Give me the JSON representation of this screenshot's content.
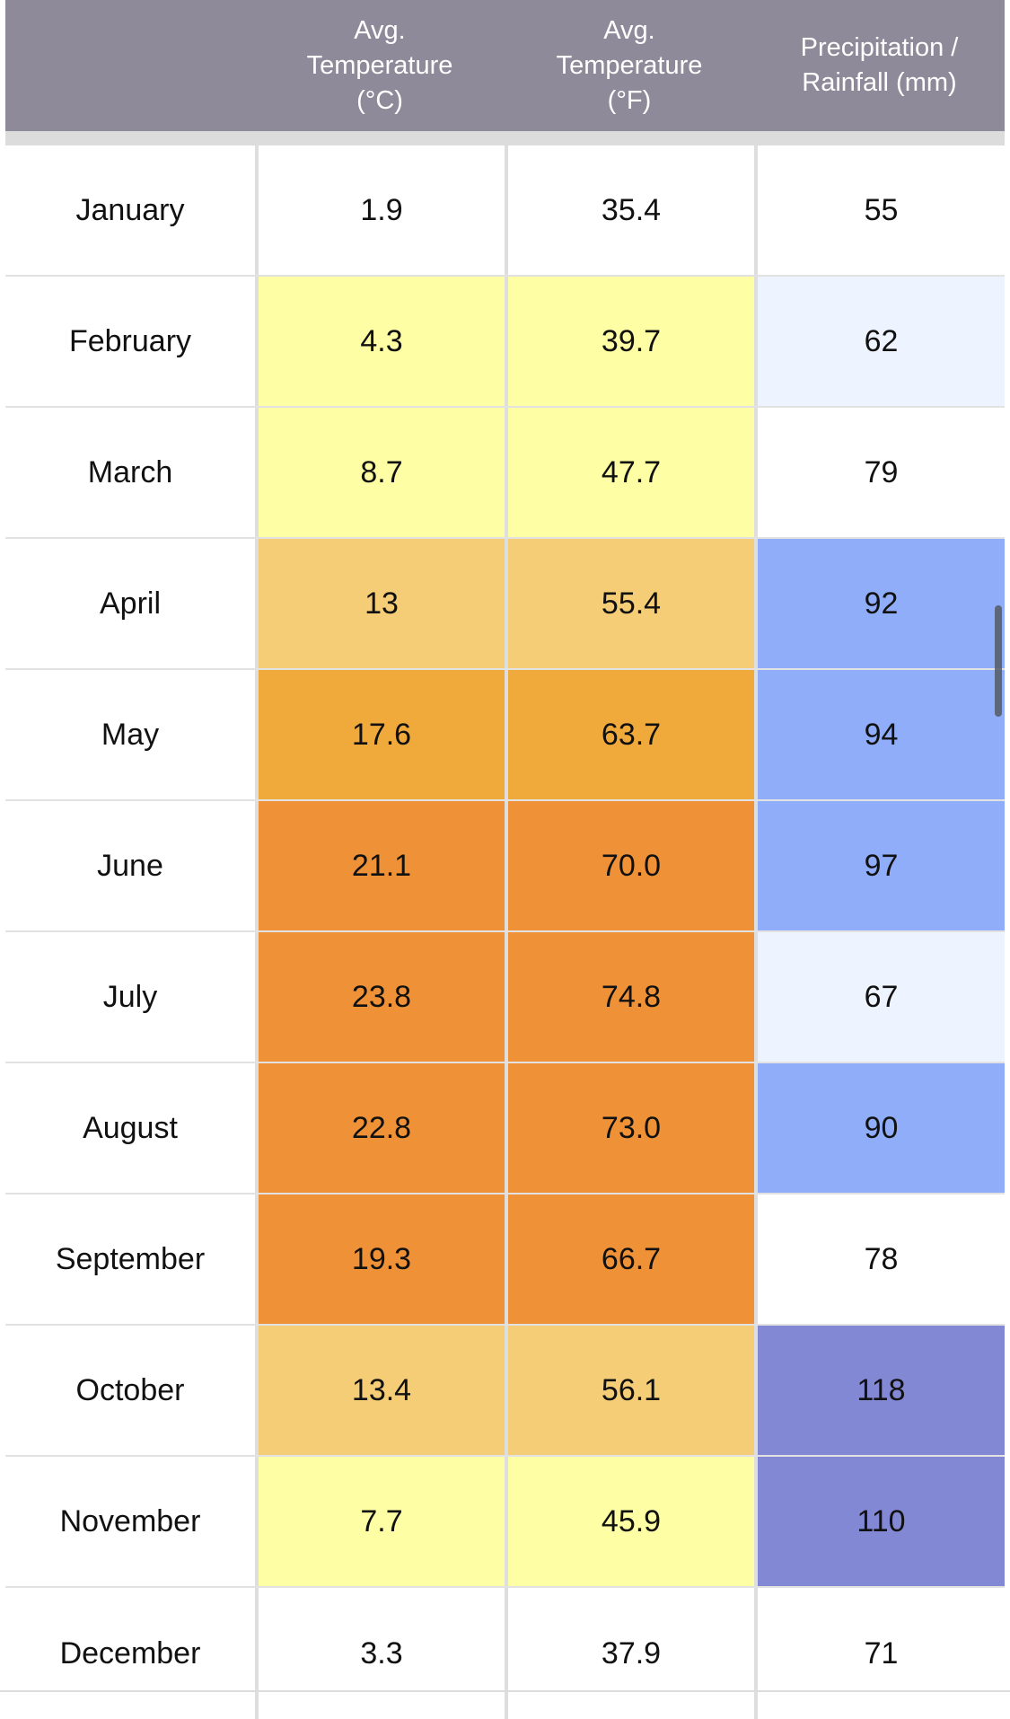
{
  "header": {
    "cols": [
      "",
      "Avg.\nTemperature\n(°C)",
      "Avg.\nTemperature\n(°F)",
      "Precipitation /\nRainfall (mm)"
    ]
  },
  "colors": {
    "white": "#ffffff",
    "temp_pale_yellow": "#fefea5",
    "temp_light_orange": "#f5cd77",
    "temp_orange": "#f0aa3b",
    "temp_dark_orange": "#ef9136",
    "rain_very_light": "#eef4ff",
    "rain_blue": "#8fadf8",
    "rain_purple": "#8288d4"
  },
  "rows": [
    {
      "month": "January",
      "c": "1.9",
      "f": "35.4",
      "mm": "55",
      "tc": "white",
      "pc": "white"
    },
    {
      "month": "February",
      "c": "4.3",
      "f": "39.7",
      "mm": "62",
      "tc": "temp_pale_yellow",
      "pc": "rain_very_light"
    },
    {
      "month": "March",
      "c": "8.7",
      "f": "47.7",
      "mm": "79",
      "tc": "temp_pale_yellow",
      "pc": "white"
    },
    {
      "month": "April",
      "c": "13",
      "f": "55.4",
      "mm": "92",
      "tc": "temp_light_orange",
      "pc": "rain_blue"
    },
    {
      "month": "May",
      "c": "17.6",
      "f": "63.7",
      "mm": "94",
      "tc": "temp_orange",
      "pc": "rain_blue"
    },
    {
      "month": "June",
      "c": "21.1",
      "f": "70.0",
      "mm": "97",
      "tc": "temp_dark_orange",
      "pc": "rain_blue"
    },
    {
      "month": "July",
      "c": "23.8",
      "f": "74.8",
      "mm": "67",
      "tc": "temp_dark_orange",
      "pc": "rain_very_light"
    },
    {
      "month": "August",
      "c": "22.8",
      "f": "73.0",
      "mm": "90",
      "tc": "temp_dark_orange",
      "pc": "rain_blue"
    },
    {
      "month": "September",
      "c": "19.3",
      "f": "66.7",
      "mm": "78",
      "tc": "temp_dark_orange",
      "pc": "white"
    },
    {
      "month": "October",
      "c": "13.4",
      "f": "56.1",
      "mm": "118",
      "tc": "temp_light_orange",
      "pc": "rain_purple"
    },
    {
      "month": "November",
      "c": "7.7",
      "f": "45.9",
      "mm": "110",
      "tc": "temp_pale_yellow",
      "pc": "rain_purple"
    },
    {
      "month": "December",
      "c": "3.3",
      "f": "37.9",
      "mm": "71",
      "tc": "white",
      "pc": "white"
    }
  ]
}
